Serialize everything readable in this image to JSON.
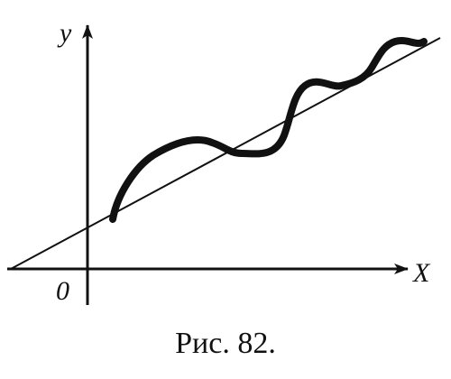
{
  "figure": {
    "x_axis_label": "X",
    "y_axis_label": "y",
    "origin_label": "0",
    "caption": "Рис. 82.",
    "stroke_color": "#111111",
    "background_color": "#ffffff"
  }
}
